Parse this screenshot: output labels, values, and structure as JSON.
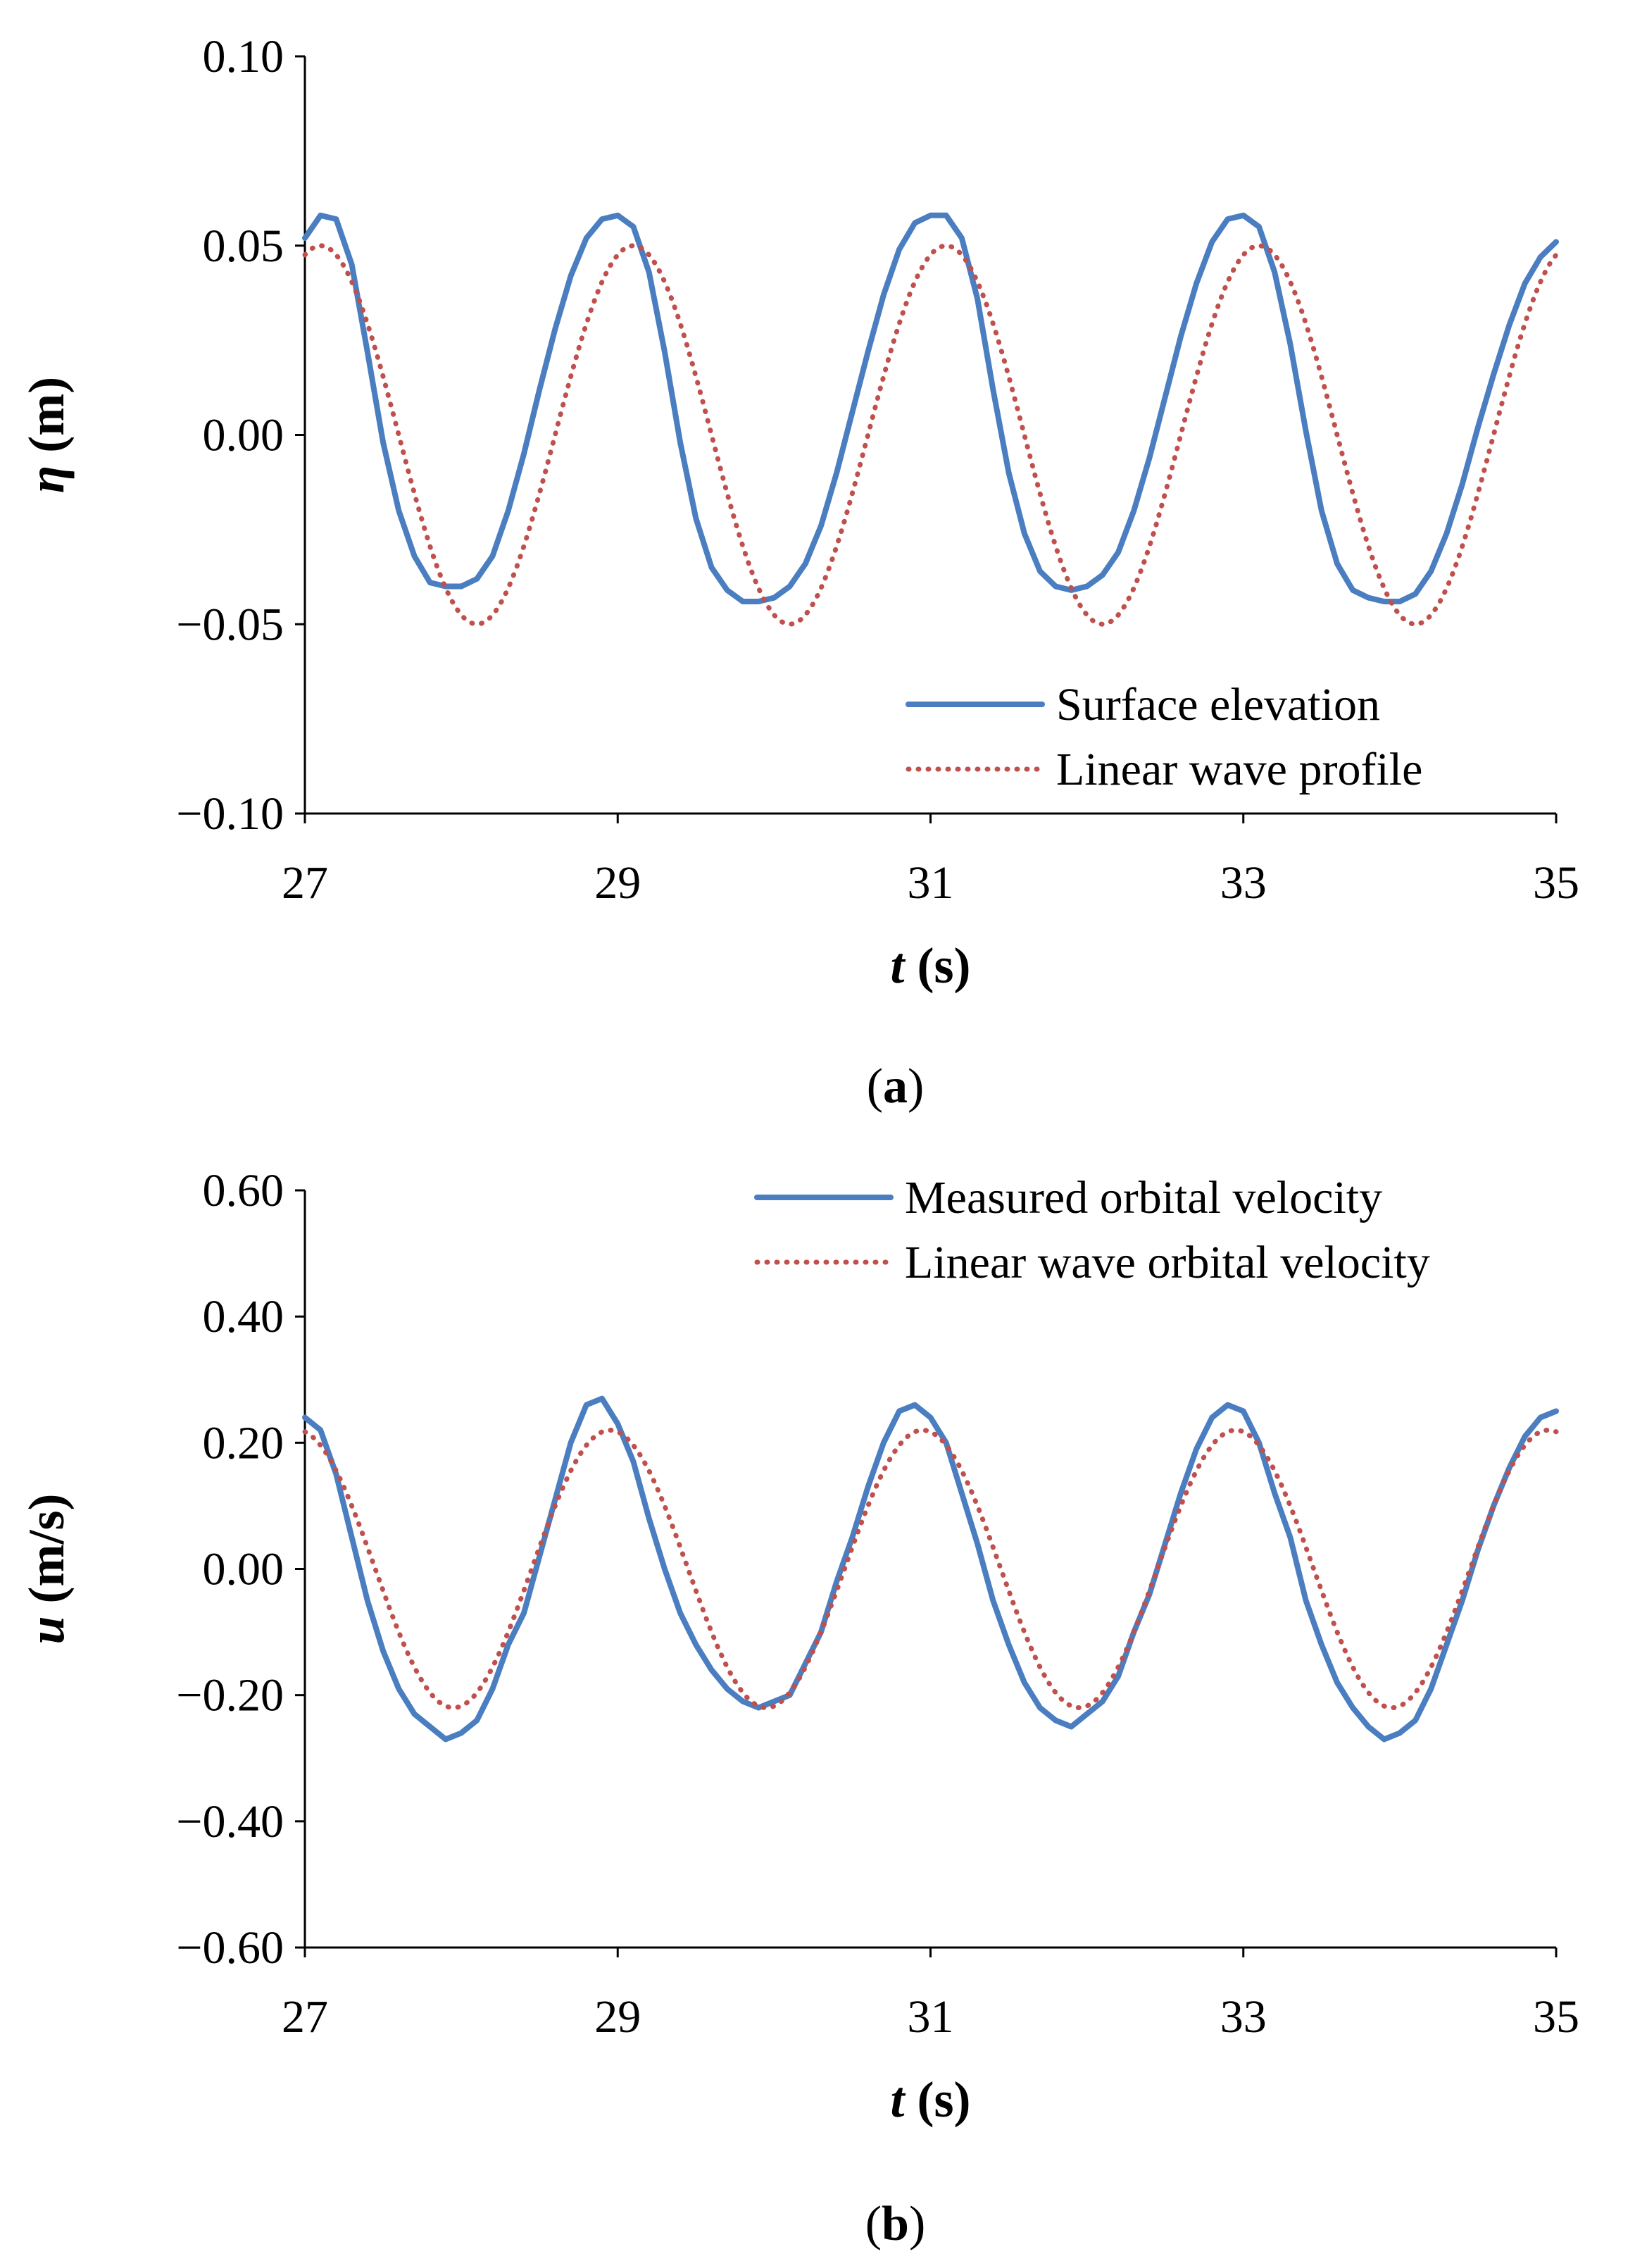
{
  "colors": {
    "measured": "#4a7ec0",
    "linear": "#c0504d"
  },
  "chart_data": [
    {
      "type": "line",
      "panel": "a",
      "caption_prefix": "(",
      "caption_letter": "a",
      "caption_suffix": ")",
      "xlabel_var": "t",
      "xlabel_unit": " (s)",
      "ylabel_var": "η",
      "ylabel_unit": " (m)",
      "xlim": [
        27,
        35
      ],
      "ylim": [
        -0.1,
        0.1
      ],
      "xticks": [
        27,
        29,
        31,
        33,
        35
      ],
      "yticks": [
        0.1,
        0.05,
        0.0,
        -0.05,
        -0.1
      ],
      "ytick_labels": [
        "0.10",
        "0.05",
        "0.00",
        "−0.05",
        "−0.10"
      ],
      "legend_position": "bottom-right",
      "series": [
        {
          "name": "Surface elevation",
          "style": "solid",
          "color_key": "measured",
          "x": [
            27.0,
            27.1,
            27.2,
            27.3,
            27.4,
            27.5,
            27.6,
            27.7,
            27.8,
            27.9,
            28.0,
            28.1,
            28.2,
            28.3,
            28.4,
            28.5,
            28.6,
            28.7,
            28.8,
            28.9,
            29.0,
            29.1,
            29.2,
            29.3,
            29.4,
            29.5,
            29.6,
            29.7,
            29.8,
            29.9,
            30.0,
            30.1,
            30.2,
            30.3,
            30.4,
            30.5,
            30.6,
            30.7,
            30.8,
            30.9,
            31.0,
            31.1,
            31.2,
            31.3,
            31.4,
            31.5,
            31.6,
            31.7,
            31.8,
            31.9,
            32.0,
            32.1,
            32.2,
            32.3,
            32.4,
            32.5,
            32.6,
            32.7,
            32.8,
            32.9,
            33.0,
            33.1,
            33.2,
            33.3,
            33.4,
            33.5,
            33.6,
            33.7,
            33.8,
            33.9,
            34.0,
            34.1,
            34.2,
            34.3,
            34.4,
            34.5,
            34.6,
            34.7,
            34.8,
            34.9,
            35.0
          ],
          "y": [
            0.052,
            0.058,
            0.057,
            0.045,
            0.022,
            -0.002,
            -0.02,
            -0.032,
            -0.039,
            -0.04,
            -0.04,
            -0.038,
            -0.032,
            -0.02,
            -0.005,
            0.012,
            0.028,
            0.042,
            0.052,
            0.057,
            0.058,
            0.055,
            0.043,
            0.022,
            -0.002,
            -0.022,
            -0.035,
            -0.041,
            -0.044,
            -0.044,
            -0.043,
            -0.04,
            -0.034,
            -0.024,
            -0.01,
            0.006,
            0.022,
            0.037,
            0.049,
            0.056,
            0.058,
            0.058,
            0.052,
            0.036,
            0.012,
            -0.01,
            -0.026,
            -0.036,
            -0.04,
            -0.041,
            -0.04,
            -0.037,
            -0.031,
            -0.02,
            -0.006,
            0.01,
            0.026,
            0.04,
            0.051,
            0.057,
            0.058,
            0.055,
            0.043,
            0.024,
            0.001,
            -0.02,
            -0.034,
            -0.041,
            -0.043,
            -0.044,
            -0.044,
            -0.042,
            -0.036,
            -0.026,
            -0.013,
            0.002,
            0.016,
            0.029,
            0.04,
            0.047,
            0.051
          ]
        },
        {
          "name": "Linear wave profile",
          "style": "dotted",
          "color_key": "linear",
          "amplitude": 0.05,
          "period": 2.0,
          "crest_times": [
            27.1,
            29.1,
            31.1,
            33.1,
            35.1
          ]
        }
      ]
    },
    {
      "type": "line",
      "panel": "b",
      "caption_prefix": "(",
      "caption_letter": "b",
      "caption_suffix": ")",
      "xlabel_var": "t",
      "xlabel_unit": " (s)",
      "ylabel_var": "u",
      "ylabel_unit": " (m/s)",
      "xlim": [
        27,
        35
      ],
      "ylim": [
        -0.6,
        0.6
      ],
      "xticks": [
        27,
        29,
        31,
        33,
        35
      ],
      "yticks": [
        0.6,
        0.4,
        0.2,
        0.0,
        -0.2,
        -0.4,
        -0.6
      ],
      "ytick_labels": [
        "0.60",
        "0.40",
        "0.20",
        "0.00",
        "−0.20",
        "−0.40",
        "−0.60"
      ],
      "legend_position": "top-right",
      "series": [
        {
          "name": "Measured orbital velocity",
          "style": "solid",
          "color_key": "measured",
          "x": [
            27.0,
            27.1,
            27.2,
            27.3,
            27.4,
            27.5,
            27.6,
            27.7,
            27.8,
            27.9,
            28.0,
            28.1,
            28.2,
            28.3,
            28.4,
            28.5,
            28.6,
            28.7,
            28.8,
            28.9,
            29.0,
            29.1,
            29.2,
            29.3,
            29.4,
            29.5,
            29.6,
            29.7,
            29.8,
            29.9,
            30.0,
            30.1,
            30.2,
            30.3,
            30.4,
            30.5,
            30.6,
            30.7,
            30.8,
            30.9,
            31.0,
            31.1,
            31.2,
            31.3,
            31.4,
            31.5,
            31.6,
            31.7,
            31.8,
            31.9,
            32.0,
            32.1,
            32.2,
            32.3,
            32.4,
            32.5,
            32.6,
            32.7,
            32.8,
            32.9,
            33.0,
            33.1,
            33.2,
            33.3,
            33.4,
            33.5,
            33.6,
            33.7,
            33.8,
            33.9,
            34.0,
            34.1,
            34.2,
            34.3,
            34.4,
            34.5,
            34.6,
            34.7,
            34.8,
            34.9,
            35.0
          ],
          "y": [
            0.24,
            0.22,
            0.15,
            0.05,
            -0.05,
            -0.13,
            -0.19,
            -0.23,
            -0.25,
            -0.27,
            -0.26,
            -0.24,
            -0.19,
            -0.12,
            -0.07,
            0.02,
            0.11,
            0.2,
            0.26,
            0.27,
            0.23,
            0.17,
            0.08,
            0.0,
            -0.07,
            -0.12,
            -0.16,
            -0.19,
            -0.21,
            -0.22,
            -0.21,
            -0.2,
            -0.15,
            -0.1,
            -0.02,
            0.05,
            0.13,
            0.2,
            0.25,
            0.26,
            0.24,
            0.2,
            0.12,
            0.04,
            -0.05,
            -0.12,
            -0.18,
            -0.22,
            -0.24,
            -0.25,
            -0.23,
            -0.21,
            -0.17,
            -0.1,
            -0.04,
            0.04,
            0.12,
            0.19,
            0.24,
            0.26,
            0.25,
            0.2,
            0.12,
            0.05,
            -0.05,
            -0.12,
            -0.18,
            -0.22,
            -0.25,
            -0.27,
            -0.26,
            -0.24,
            -0.19,
            -0.12,
            -0.05,
            0.03,
            0.1,
            0.16,
            0.21,
            0.24,
            0.25
          ]
        },
        {
          "name": "Linear wave orbital velocity",
          "style": "dotted",
          "color_key": "linear",
          "amplitude": 0.22,
          "period": 2.0,
          "crest_times": [
            26.95,
            28.95,
            30.95,
            32.95,
            34.95
          ]
        }
      ]
    }
  ]
}
